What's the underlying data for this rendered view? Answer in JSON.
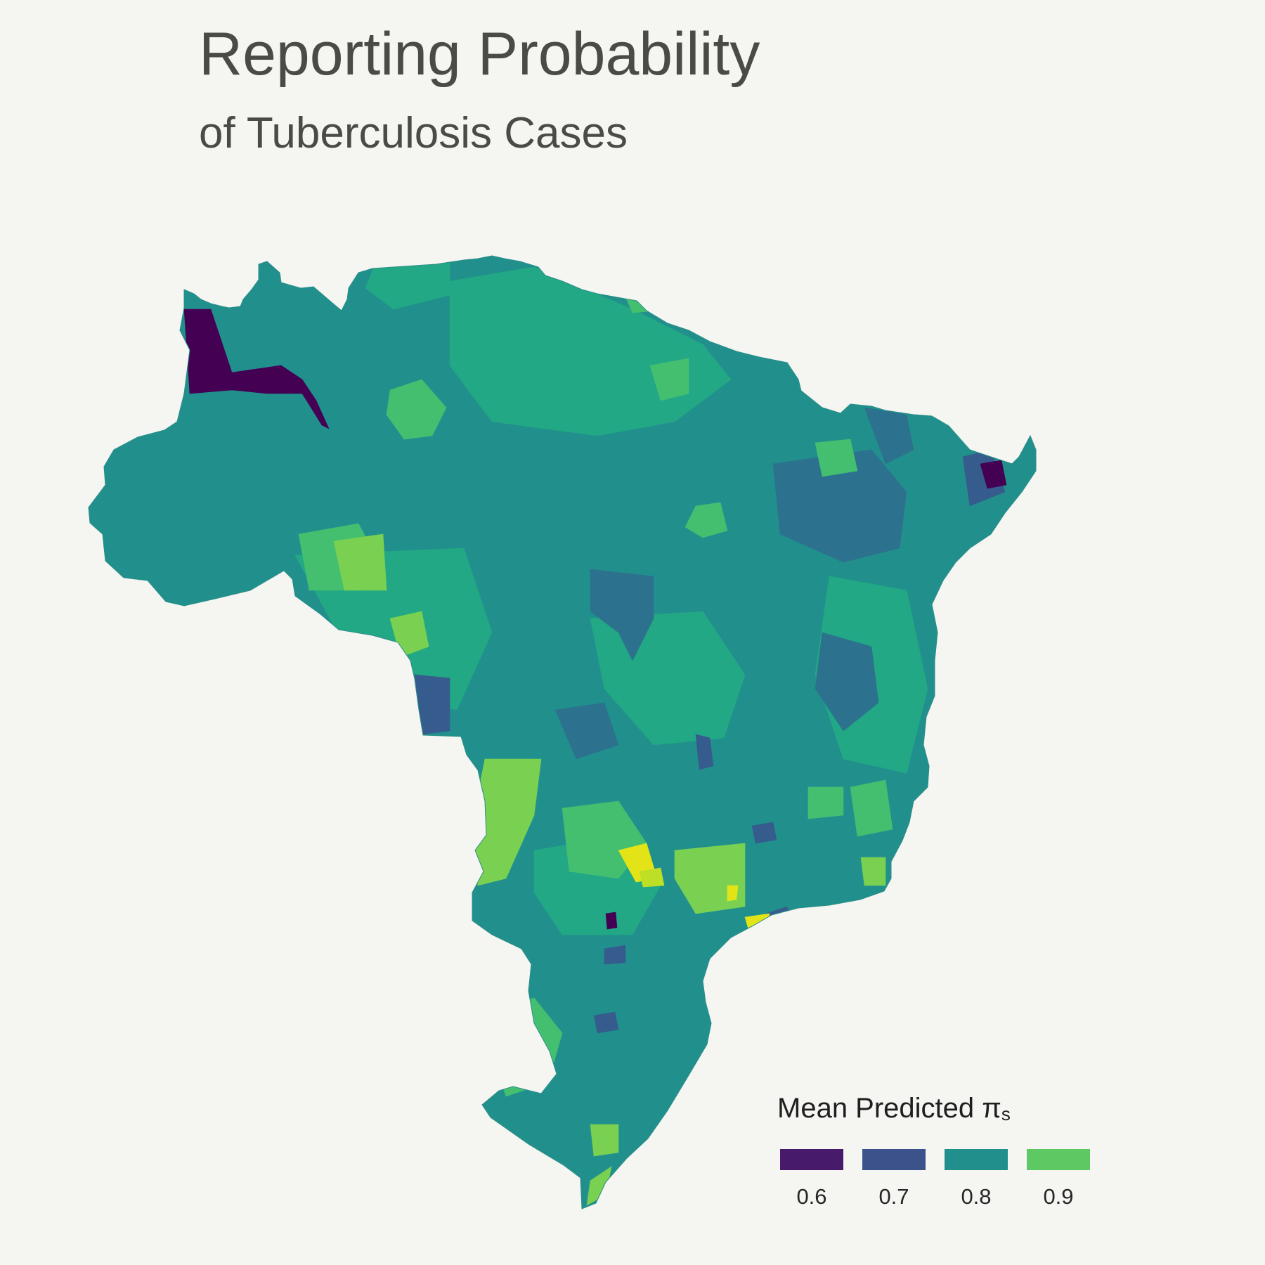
{
  "title": "Reporting Probability",
  "subtitle": "of Tuberculosis Cases",
  "legend": {
    "title_main": "Mean Predicted π",
    "title_sub": "s",
    "items": [
      {
        "label": "0.6",
        "color": "#481a6c"
      },
      {
        "label": "0.7",
        "color": "#3b528b"
      },
      {
        "label": "0.8",
        "color": "#21908d"
      },
      {
        "label": "0.9",
        "color": "#5ec962"
      }
    ]
  },
  "palette": {
    "dark_purple": "#440154",
    "purple": "#46337e",
    "blue": "#365c8d",
    "slate": "#2c728e",
    "teal": "#21908d",
    "teal_green": "#22a884",
    "green": "#44bf70",
    "light_green": "#5ec962",
    "lime": "#7ad151",
    "yellow_green": "#bddf26",
    "yellow": "#e3e418"
  }
}
